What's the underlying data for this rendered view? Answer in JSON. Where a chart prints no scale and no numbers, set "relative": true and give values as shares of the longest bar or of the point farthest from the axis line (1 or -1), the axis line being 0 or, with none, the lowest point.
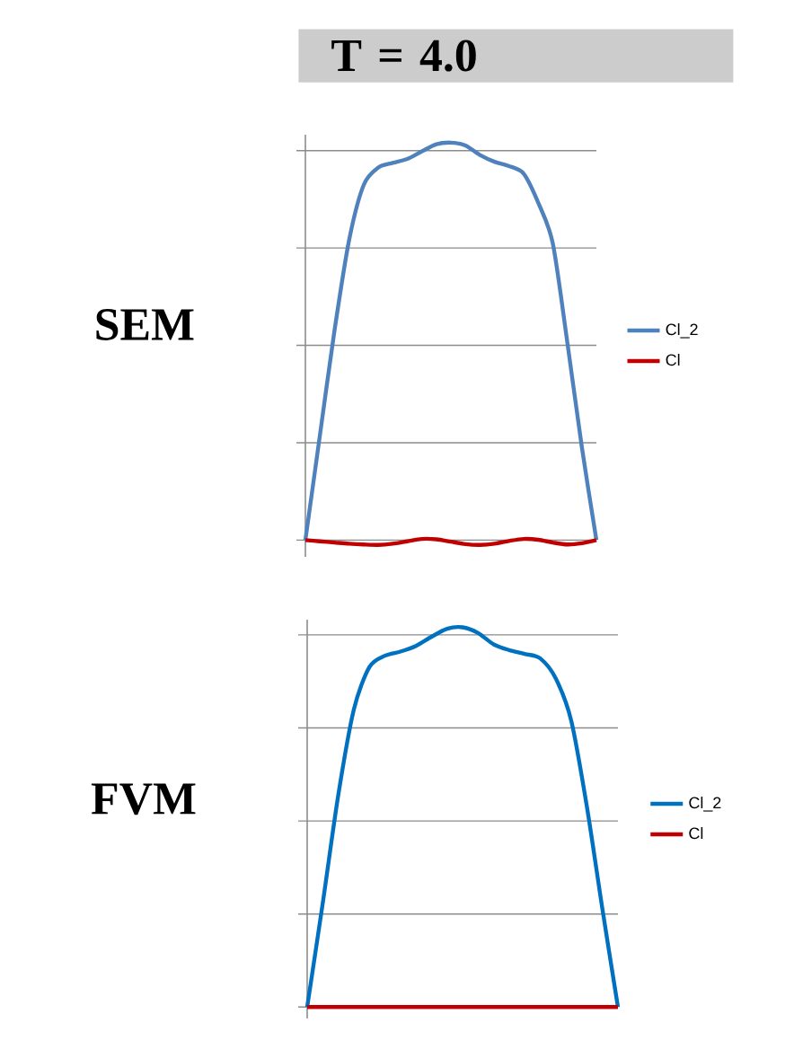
{
  "chart_data": [
    {
      "type": "line",
      "title": "T = 4.0",
      "ylabel": "SEM",
      "relative": true,
      "grid": "y",
      "legend": "right",
      "categories": [
        null,
        null,
        null,
        null,
        null,
        null,
        null,
        null,
        null,
        null,
        null,
        null,
        null,
        null,
        null,
        null,
        null,
        null,
        null,
        null,
        null
      ],
      "series": [
        {
          "name": "Cl_2",
          "color": "#4f81bd",
          "values": [
            0,
            0.264,
            0.527,
            0.754,
            0.893,
            0.937,
            0.949,
            0.959,
            0.978,
            0.996,
            1,
            0.993,
            0.969,
            0.952,
            0.941,
            0.922,
            0.849,
            0.747,
            0.498,
            0.234,
            0
          ]
        },
        {
          "name": "Cl",
          "color": "#c00000",
          "values": [
            0,
            -0.003,
            -0.006,
            -0.009,
            -0.011,
            -0.012,
            -0.009,
            -0.003,
            0.003,
            0.002,
            -0.004,
            -0.01,
            -0.012,
            -0.009,
            -0.002,
            0.003,
            0.001,
            -0.006,
            -0.011,
            -0.008,
            0
          ]
        }
      ]
    },
    {
      "type": "line",
      "ylabel": "FVM",
      "relative": true,
      "grid": "y",
      "legend": "right",
      "categories": [
        null,
        null,
        null,
        null,
        null,
        null,
        null,
        null,
        null,
        null,
        null,
        null,
        null,
        null,
        null,
        null,
        null,
        null,
        null,
        null,
        null
      ],
      "series": [
        {
          "name": "Cl_2",
          "color": "#0070c0",
          "values": [
            0,
            0.273,
            0.558,
            0.783,
            0.895,
            0.925,
            0.936,
            0.951,
            0.975,
            0.996,
            1,
            0.985,
            0.955,
            0.94,
            0.93,
            0.918,
            0.865,
            0.753,
            0.528,
            0.258,
            0
          ]
        },
        {
          "name": "Cl",
          "color": "#c00000",
          "values": [
            0,
            0,
            0,
            0,
            0,
            0,
            0,
            0,
            0,
            0,
            0,
            0,
            0,
            0,
            0,
            0,
            0,
            0,
            0,
            0,
            0
          ]
        }
      ]
    }
  ]
}
